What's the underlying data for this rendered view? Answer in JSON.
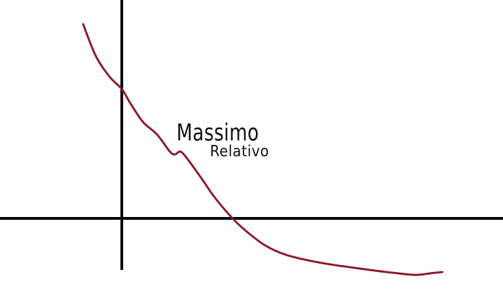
{
  "chart_data": {
    "type": "line",
    "title": "",
    "xlabel": "",
    "ylabel": "",
    "x_range": [
      -1.0,
      9.3
    ],
    "y_range": [
      -1.2,
      5.3
    ],
    "grid": false,
    "legend": "none",
    "curve_color": "#8b1a2b",
    "axis_color": "#000000",
    "series": [
      {
        "points": [
          [
            -0.82,
            4.13
          ],
          [
            -0.55,
            3.45
          ],
          [
            -0.25,
            3.0
          ],
          [
            0.0,
            2.75
          ],
          [
            0.18,
            2.45
          ],
          [
            0.45,
            2.05
          ],
          [
            0.75,
            1.78
          ],
          [
            1.02,
            1.42
          ],
          [
            1.13,
            1.36
          ],
          [
            1.24,
            1.42
          ],
          [
            1.38,
            1.28
          ],
          [
            1.7,
            0.84
          ],
          [
            1.96,
            0.46
          ],
          [
            2.35,
            0.0
          ],
          [
            2.65,
            -0.28
          ],
          [
            3.05,
            -0.58
          ],
          [
            3.5,
            -0.78
          ],
          [
            4.2,
            -0.94
          ],
          [
            5.0,
            -1.06
          ],
          [
            5.8,
            -1.16
          ],
          [
            6.25,
            -1.2
          ],
          [
            6.6,
            -1.16
          ],
          [
            6.8,
            -1.14
          ]
        ]
      }
    ],
    "annotations": [
      {
        "text": "Massimo",
        "x": 1.16,
        "y": 1.66
      },
      {
        "text": "Relativo",
        "x": 1.87,
        "y": 1.32
      }
    ]
  }
}
